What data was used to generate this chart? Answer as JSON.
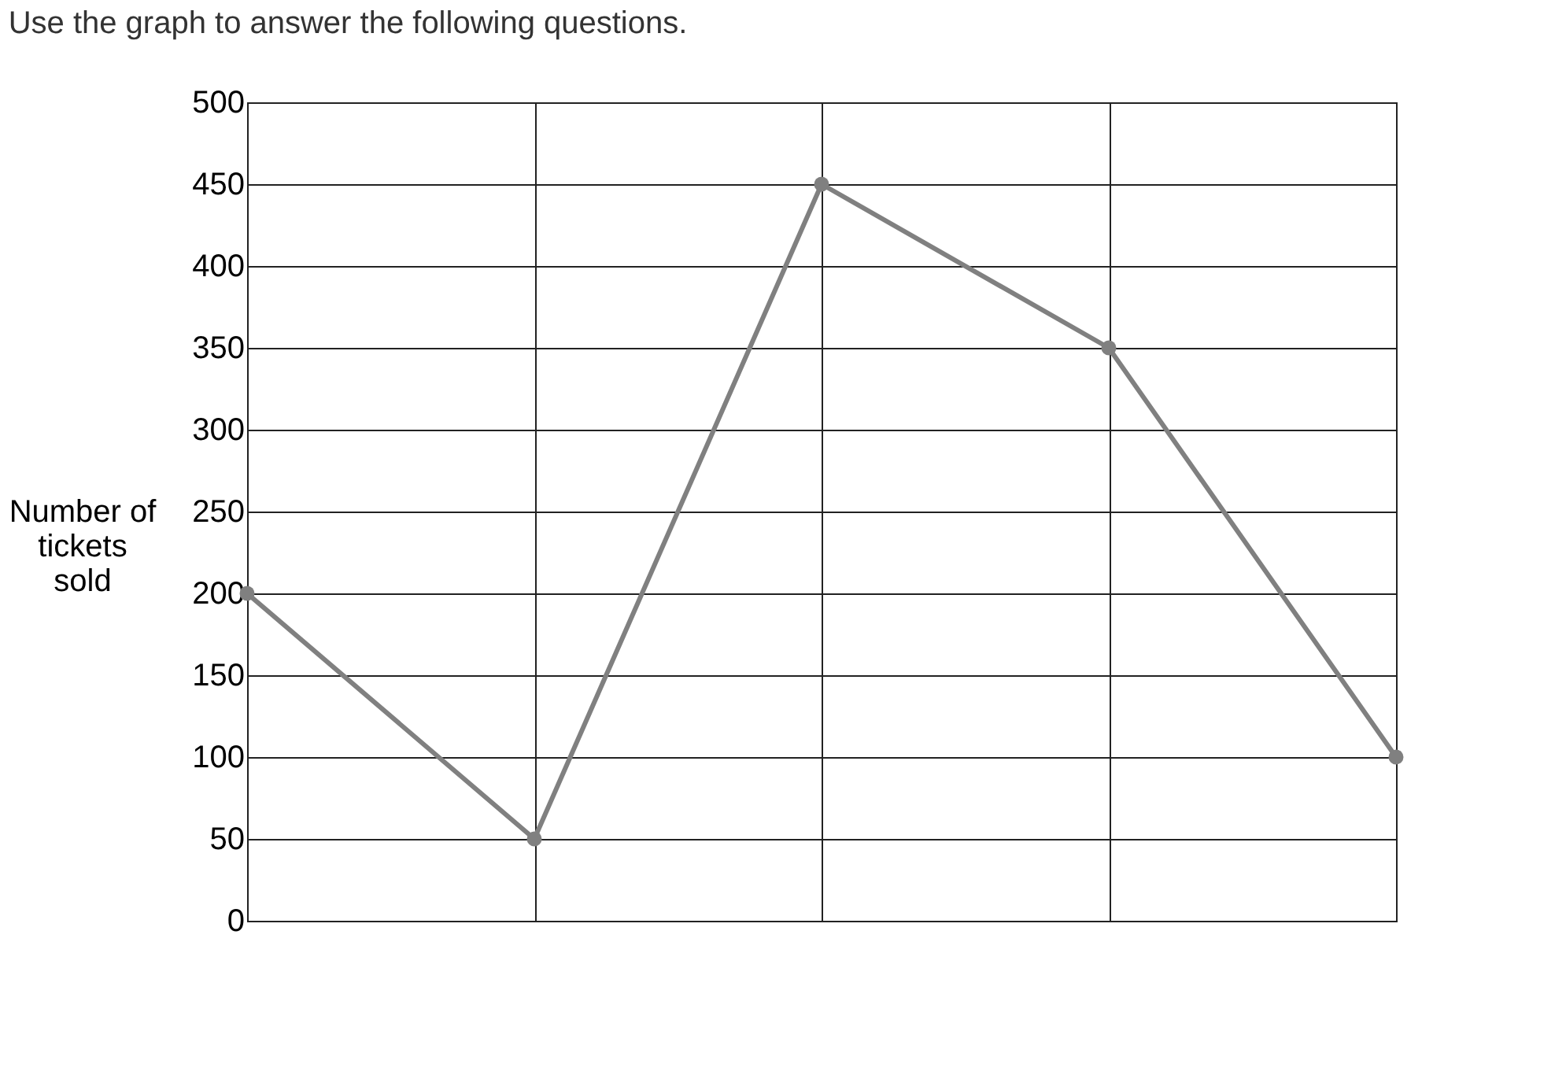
{
  "chart_data": {
    "type": "line",
    "title": "Use the graph to answer the following questions.",
    "ylabel": "Number of tickets sold",
    "categories": [
      null,
      null,
      null,
      null,
      null
    ],
    "series": [
      {
        "color": "#808080",
        "values": [
          200,
          50,
          450,
          350,
          100
        ]
      }
    ],
    "ylim": [
      0,
      500
    ],
    "yticks": [
      0,
      50,
      100,
      150,
      200,
      250,
      300,
      350,
      400,
      450,
      500
    ],
    "grid": true,
    "marker": "circle",
    "line_style": "solid",
    "tick_labels": "y"
  }
}
